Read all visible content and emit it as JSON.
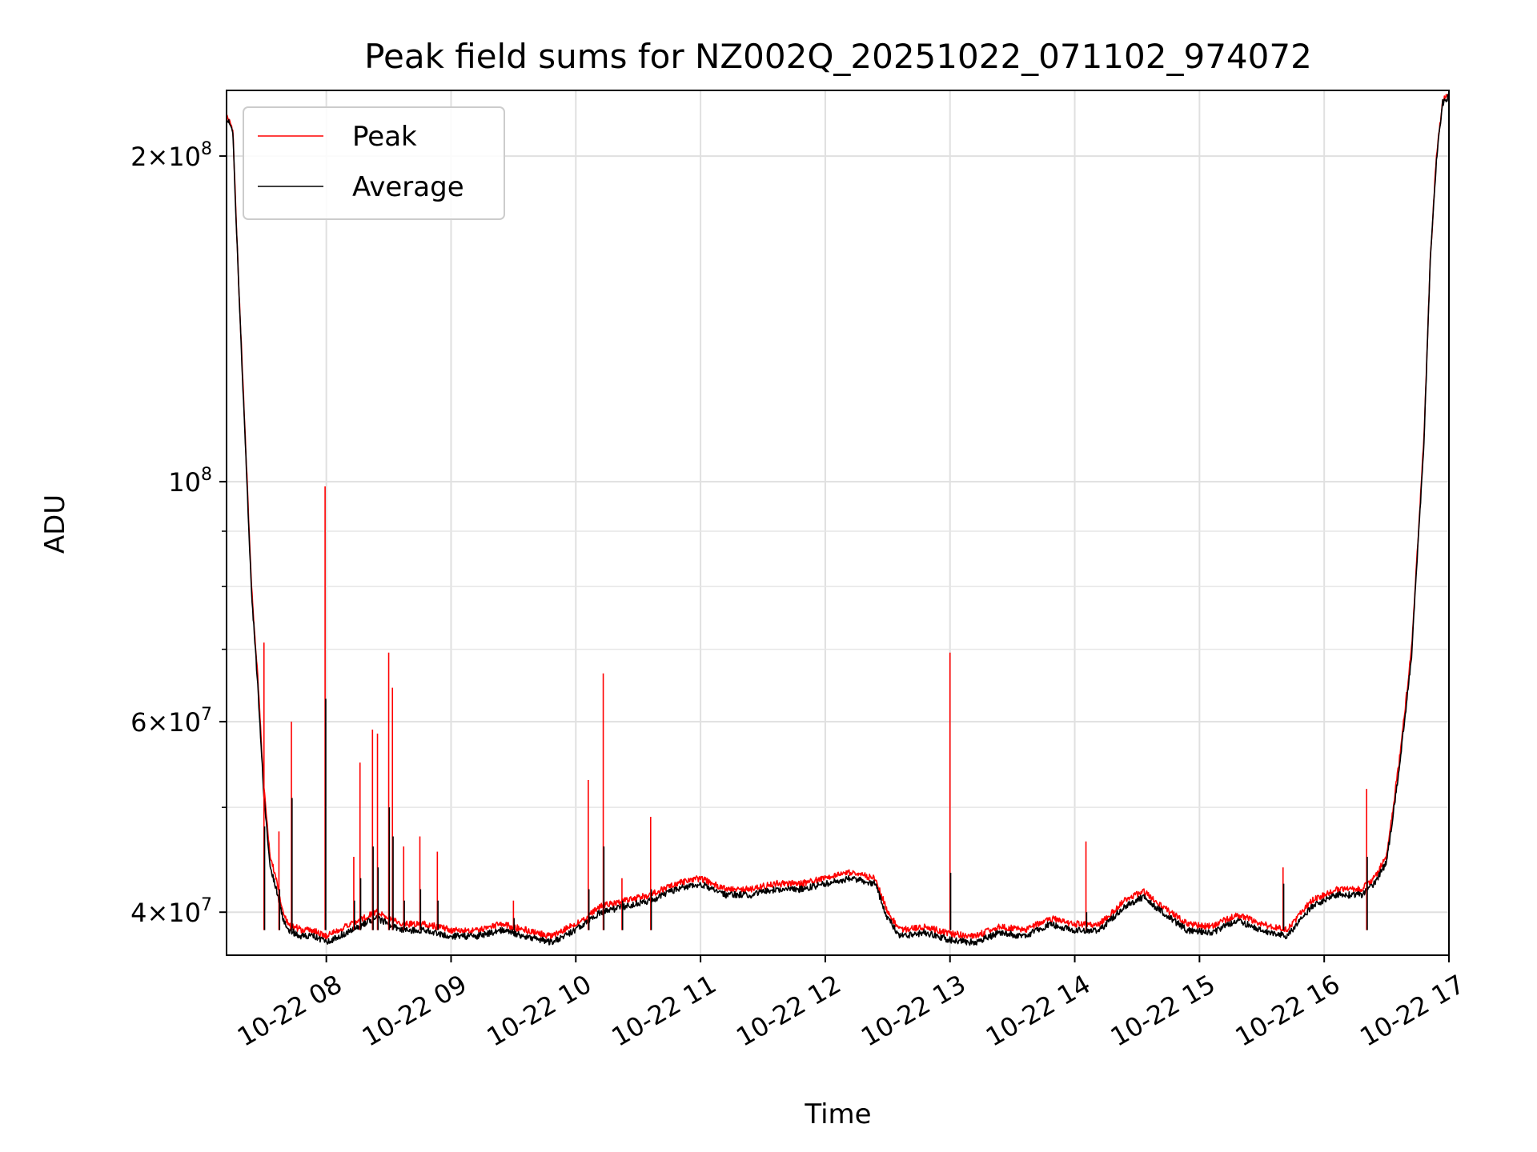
{
  "chart_data": {
    "type": "line",
    "title": "Peak field sums for NZ002Q_20251022_071102_974072",
    "xlabel": "Time",
    "ylabel": "ADU",
    "yscale": "log",
    "ylim": [
      36500000,
      230000000
    ],
    "xlim_hours": [
      7.2,
      17.0
    ],
    "grid": true,
    "legend_position": "upper-left",
    "x_ticks": [
      {
        "hour": 8,
        "label": "10-22 08"
      },
      {
        "hour": 9,
        "label": "10-22 09"
      },
      {
        "hour": 10,
        "label": "10-22 10"
      },
      {
        "hour": 11,
        "label": "10-22 11"
      },
      {
        "hour": 12,
        "label": "10-22 12"
      },
      {
        "hour": 13,
        "label": "10-22 13"
      },
      {
        "hour": 14,
        "label": "10-22 14"
      },
      {
        "hour": 15,
        "label": "10-22 15"
      },
      {
        "hour": 16,
        "label": "10-22 16"
      },
      {
        "hour": 17,
        "label": "10-22 17"
      }
    ],
    "y_ticks": [
      {
        "value": 40000000,
        "mantissa": "4",
        "exp": "7"
      },
      {
        "value": 60000000,
        "mantissa": "6",
        "exp": "7"
      },
      {
        "value": 100000000,
        "mantissa": "",
        "exp": "8"
      },
      {
        "value": 200000000,
        "mantissa": "2",
        "exp": "8"
      }
    ],
    "y_minor_ticks": [
      50000000,
      70000000,
      80000000,
      90000000
    ],
    "series": [
      {
        "name": "Peak",
        "color": "#ff0000",
        "x_hours": [
          7.2,
          7.25,
          7.3,
          7.35,
          7.4,
          7.45,
          7.5,
          7.55,
          7.6,
          7.65,
          7.7,
          7.8,
          7.9,
          8.0,
          8.2,
          8.4,
          8.6,
          8.8,
          9.0,
          9.2,
          9.4,
          9.6,
          9.8,
          10.0,
          10.2,
          10.4,
          10.6,
          10.8,
          11.0,
          11.2,
          11.4,
          11.6,
          11.8,
          12.0,
          12.2,
          12.4,
          12.5,
          12.6,
          12.8,
          13.0,
          13.2,
          13.4,
          13.6,
          13.8,
          14.0,
          14.2,
          14.4,
          14.55,
          14.7,
          14.9,
          15.1,
          15.3,
          15.5,
          15.7,
          15.9,
          16.1,
          16.3,
          16.4,
          16.5,
          16.6,
          16.7,
          16.8,
          16.85,
          16.9,
          16.95,
          17.0
        ],
        "values": [
          218000000,
          212000000,
          150000000,
          110000000,
          80000000,
          66000000,
          52000000,
          45000000,
          43000000,
          40000000,
          39000000,
          38500000,
          38500000,
          38000000,
          39000000,
          40000000,
          39000000,
          39000000,
          38500000,
          38500000,
          39000000,
          38500000,
          38000000,
          39000000,
          40500000,
          41000000,
          41500000,
          42500000,
          43000000,
          42000000,
          42000000,
          42500000,
          42500000,
          43000000,
          43500000,
          43000000,
          40000000,
          38500000,
          38800000,
          38200000,
          38000000,
          38800000,
          38500000,
          39500000,
          39000000,
          39000000,
          41000000,
          41800000,
          40500000,
          39000000,
          38800000,
          39800000,
          39000000,
          38500000,
          41000000,
          42000000,
          42000000,
          43000000,
          45000000,
          55000000,
          70000000,
          110000000,
          160000000,
          200000000,
          225000000,
          228000000
        ]
      },
      {
        "name": "Average",
        "color": "#000000",
        "x_hours": [
          7.2,
          7.25,
          7.3,
          7.35,
          7.4,
          7.45,
          7.5,
          7.55,
          7.6,
          7.65,
          7.7,
          7.8,
          7.9,
          8.0,
          8.2,
          8.4,
          8.6,
          8.8,
          9.0,
          9.2,
          9.4,
          9.6,
          9.8,
          10.0,
          10.2,
          10.4,
          10.6,
          10.8,
          11.0,
          11.2,
          11.4,
          11.6,
          11.8,
          12.0,
          12.2,
          12.4,
          12.5,
          12.6,
          12.8,
          13.0,
          13.2,
          13.4,
          13.6,
          13.8,
          14.0,
          14.2,
          14.4,
          14.55,
          14.7,
          14.9,
          15.1,
          15.3,
          15.5,
          15.7,
          15.9,
          16.1,
          16.3,
          16.4,
          16.5,
          16.6,
          16.7,
          16.8,
          16.85,
          16.9,
          16.95,
          17.0
        ],
        "values": [
          217000000,
          211000000,
          149000000,
          109000000,
          79000000,
          65000000,
          51000000,
          44000000,
          42000000,
          39500000,
          38500000,
          38000000,
          38000000,
          37500000,
          38500000,
          39500000,
          38500000,
          38500000,
          38000000,
          38000000,
          38500000,
          38000000,
          37500000,
          38500000,
          40000000,
          40500000,
          41000000,
          42000000,
          42500000,
          41500000,
          41500000,
          42000000,
          42000000,
          42500000,
          43000000,
          42500000,
          39500000,
          38000000,
          38300000,
          37700000,
          37500000,
          38300000,
          38000000,
          39000000,
          38500000,
          38500000,
          40500000,
          41300000,
          40000000,
          38500000,
          38300000,
          39300000,
          38500000,
          38000000,
          40500000,
          41500000,
          41500000,
          42500000,
          44500000,
          54000000,
          69000000,
          109000000,
          159000000,
          199000000,
          224000000,
          227000000
        ]
      }
    ],
    "spikes": [
      {
        "hour": 7.5,
        "peak": 71000000,
        "average": 48000000
      },
      {
        "hour": 7.62,
        "peak": 47500000,
        "average": 42000000
      },
      {
        "hour": 7.72,
        "peak": 60000000,
        "average": 51000000
      },
      {
        "hour": 7.99,
        "peak": 99000000,
        "average": 63000000
      },
      {
        "hour": 8.22,
        "peak": 45000000,
        "average": 41000000
      },
      {
        "hour": 8.27,
        "peak": 55000000,
        "average": 43000000
      },
      {
        "hour": 8.37,
        "peak": 59000000,
        "average": 46000000
      },
      {
        "hour": 8.41,
        "peak": 58500000,
        "average": 44000000
      },
      {
        "hour": 8.5,
        "peak": 69500000,
        "average": 50000000
      },
      {
        "hour": 8.53,
        "peak": 64500000,
        "average": 47000000
      },
      {
        "hour": 8.62,
        "peak": 46000000,
        "average": 41000000
      },
      {
        "hour": 8.75,
        "peak": 47000000,
        "average": 42000000
      },
      {
        "hour": 8.89,
        "peak": 45500000,
        "average": 41000000
      },
      {
        "hour": 9.5,
        "peak": 41000000,
        "average": 39500000
      },
      {
        "hour": 10.1,
        "peak": 53000000,
        "average": 42000000
      },
      {
        "hour": 10.22,
        "peak": 66500000,
        "average": 46000000
      },
      {
        "hour": 10.37,
        "peak": 43000000,
        "average": 41000000
      },
      {
        "hour": 10.6,
        "peak": 49000000,
        "average": 42000000
      },
      {
        "hour": 13.0,
        "peak": 69500000,
        "average": 43500000
      },
      {
        "hour": 14.09,
        "peak": 46500000,
        "average": 40000000
      },
      {
        "hour": 15.67,
        "peak": 44000000,
        "average": 42500000
      },
      {
        "hour": 16.34,
        "peak": 52000000,
        "average": 45000000
      }
    ],
    "legend": [
      {
        "label": "Peak",
        "color": "#ff0000"
      },
      {
        "label": "Average",
        "color": "#000000"
      }
    ]
  }
}
